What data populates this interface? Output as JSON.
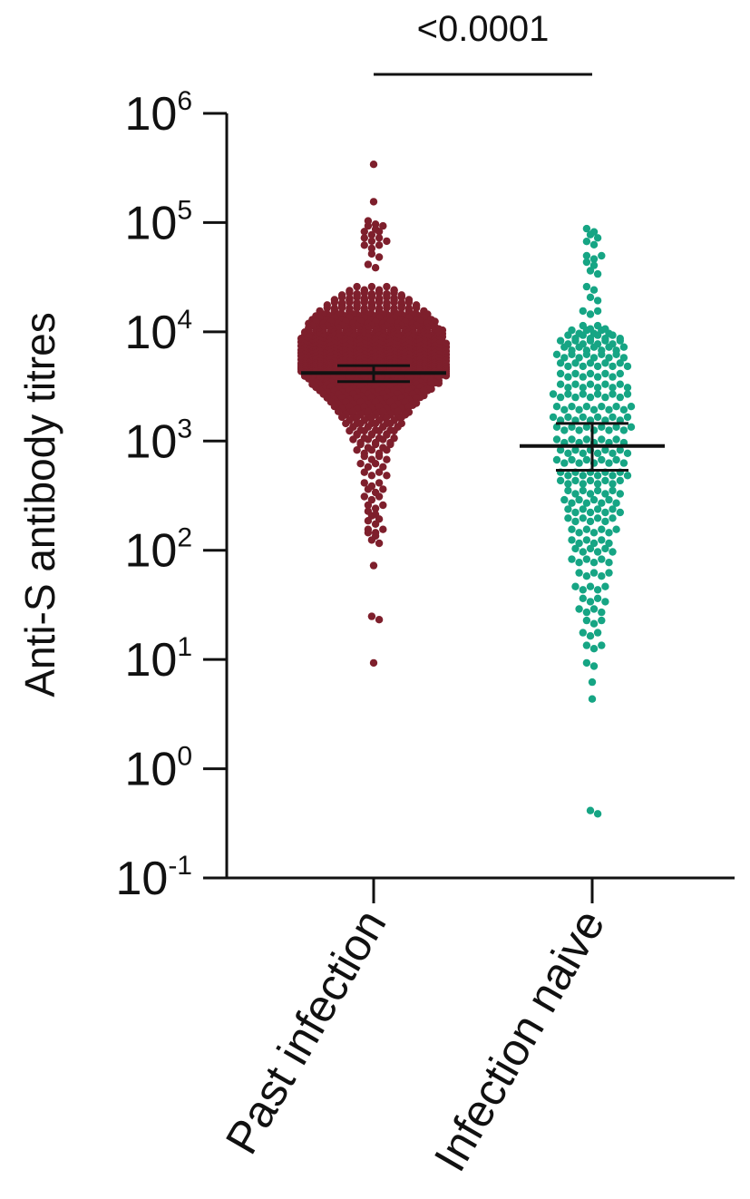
{
  "chart_data": {
    "type": "scatter",
    "subtype": "dot-plot",
    "title": "",
    "xlabel": "",
    "ylabel": "Anti-S antibody titres",
    "y_scale": "log10",
    "ylim": [
      0.1,
      1000000
    ],
    "y_ticks": [
      {
        "value": 0.1,
        "base": "10",
        "exp": "-1"
      },
      {
        "value": 1,
        "base": "10",
        "exp": "0"
      },
      {
        "value": 10,
        "base": "10",
        "exp": "1"
      },
      {
        "value": 100,
        "base": "10",
        "exp": "2"
      },
      {
        "value": 1000,
        "base": "10",
        "exp": "3"
      },
      {
        "value": 10000,
        "base": "10",
        "exp": "4"
      },
      {
        "value": 100000,
        "base": "10",
        "exp": "5"
      },
      {
        "value": 1000000,
        "base": "10",
        "exp": "6"
      }
    ],
    "categories": [
      "Past infection",
      "Infection naive"
    ],
    "grid": false,
    "significance": {
      "label": "<0.0001",
      "between": [
        "Past infection",
        "Infection naive"
      ]
    },
    "series": [
      {
        "name": "Past infection",
        "color": "#7e1f2c",
        "center": 4200,
        "ci_low": 3500,
        "ci_high": 4900,
        "values": [
          330000,
          150000,
          100000,
          90000,
          80000,
          70000,
          60000,
          50000,
          40000,
          25000,
          23000,
          22000,
          21000,
          20000,
          19000,
          18000,
          17000,
          16000,
          15000,
          14000,
          13500,
          13000,
          12500,
          12000,
          11500,
          11000,
          10500,
          10000,
          9600,
          9300,
          9000,
          8700,
          8400,
          8100,
          7800,
          7500,
          7200,
          6900,
          6600,
          6400,
          6200,
          6000,
          5800,
          5600,
          5400,
          5200,
          5000,
          4900,
          4800,
          4700,
          4600,
          4500,
          4400,
          4300,
          4200,
          4100,
          4000,
          3900,
          3800,
          3700,
          3600,
          3500,
          3400,
          3300,
          3200,
          3100,
          3000,
          2900,
          2800,
          2700,
          2600,
          2500,
          2400,
          2300,
          2200,
          2100,
          2000,
          1900,
          1800,
          1700,
          1600,
          1500,
          1400,
          1300,
          1200,
          1100,
          1000,
          900,
          800,
          700,
          600,
          500,
          400,
          350,
          300,
          250,
          220,
          200,
          180,
          150,
          140,
          120,
          70,
          24,
          9
        ],
        "counts": [
          1,
          1,
          2,
          3,
          3,
          4,
          3,
          2,
          2,
          6,
          7,
          8,
          9,
          10,
          11,
          12,
          13,
          14,
          15,
          15,
          16,
          16,
          17,
          17,
          18,
          18,
          18,
          19,
          19,
          19,
          19,
          19,
          20,
          20,
          20,
          20,
          20,
          20,
          20,
          20,
          20,
          20,
          20,
          20,
          20,
          20,
          20,
          20,
          20,
          20,
          20,
          20,
          20,
          20,
          20,
          20,
          19,
          19,
          19,
          18,
          18,
          18,
          17,
          17,
          17,
          16,
          16,
          15,
          15,
          14,
          14,
          13,
          13,
          12,
          12,
          11,
          11,
          10,
          10,
          9,
          9,
          8,
          8,
          7,
          7,
          6,
          6,
          5,
          5,
          4,
          4,
          4,
          3,
          3,
          3,
          3,
          2,
          2,
          2,
          3,
          2,
          2,
          1,
          2,
          1
        ]
      },
      {
        "name": "Infection naive",
        "color": "#16a584",
        "center": 900,
        "ci_low": 540,
        "ci_high": 1450,
        "values": [
          85000,
          75000,
          65000,
          48000,
          42000,
          35000,
          25000,
          20000,
          15000,
          11000,
          10000,
          9000,
          8000,
          7000,
          6000,
          5000,
          4000,
          3200,
          2600,
          2000,
          1600,
          1300,
          1000,
          800,
          650,
          500,
          420,
          340,
          280,
          230,
          190,
          150,
          120,
          100,
          80,
          60,
          45,
          35,
          28,
          22,
          17,
          13,
          9,
          6,
          4.2,
          0.4
        ],
        "counts": [
          2,
          2,
          2,
          3,
          2,
          2,
          2,
          2,
          3,
          4,
          6,
          8,
          9,
          9,
          10,
          10,
          9,
          10,
          11,
          11,
          11,
          11,
          10,
          10,
          10,
          10,
          9,
          8,
          8,
          8,
          7,
          7,
          6,
          6,
          6,
          5,
          5,
          4,
          4,
          3,
          3,
          3,
          2,
          1,
          1,
          2
        ]
      }
    ]
  }
}
